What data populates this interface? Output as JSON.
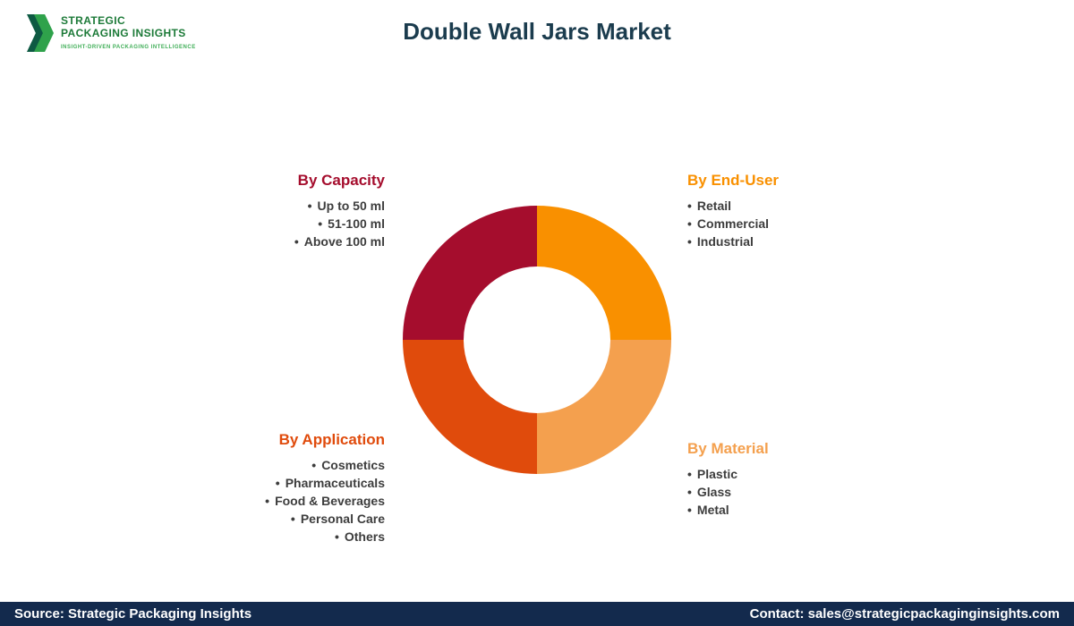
{
  "header": {
    "title": "Double Wall Jars Market",
    "logo": {
      "line1": "STRATEGIC",
      "line2": "PACKAGING INSIGHTS",
      "tagline": "INSIGHT-DRIVEN PACKAGING INTELLIGENCE"
    }
  },
  "footer": {
    "source": "Source: Strategic Packaging Insights",
    "contact": "Contact: sales@strategicpackaginginsights.com"
  },
  "colors": {
    "title": "#1b3c4e",
    "footer_bar": "#132a4d",
    "logo_green": "#1c7a38"
  },
  "chart_data": {
    "type": "pie",
    "donut": true,
    "title": "Double Wall Jars Market",
    "legend_position": "around",
    "segments": [
      {
        "label": "By End-User",
        "value": 25,
        "color": "#f99000",
        "items": [
          "Retail",
          "Commercial",
          "Industrial"
        ]
      },
      {
        "label": "By Material",
        "value": 25,
        "color": "#f4a04e",
        "items": [
          "Plastic",
          "Glass",
          "Metal"
        ]
      },
      {
        "label": "By Application",
        "value": 25,
        "color": "#e04b0c",
        "items": [
          "Cosmetics",
          "Pharmaceuticals",
          "Food & Beverages",
          "Personal Care",
          "Others"
        ]
      },
      {
        "label": "By Capacity",
        "value": 25,
        "color": "#a50d2d",
        "items": [
          "Up to 50 ml",
          "51-100 ml",
          "Above 100 ml"
        ]
      }
    ]
  }
}
